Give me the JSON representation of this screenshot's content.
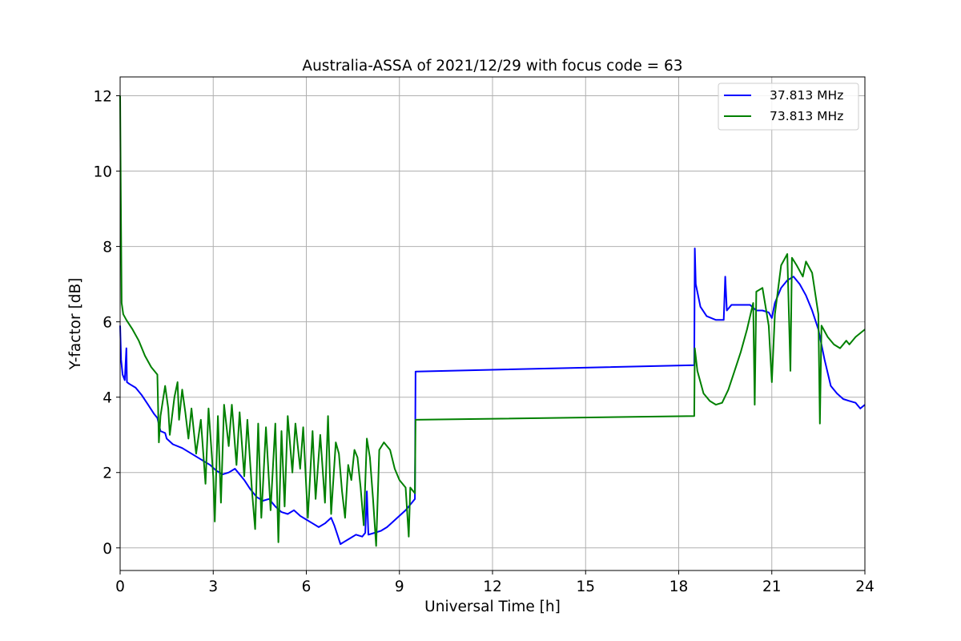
{
  "chart_data": {
    "type": "line",
    "title": "Australia-ASSA of 2021/12/29 with focus code = 63",
    "xlabel": "Universal Time [h]",
    "ylabel": "Y-factor [dB]",
    "xlim": [
      0,
      24
    ],
    "ylim": [
      -0.6,
      12.5
    ],
    "xticks": [
      0,
      3,
      6,
      9,
      12,
      15,
      18,
      21,
      24
    ],
    "yticks": [
      0,
      2,
      4,
      6,
      8,
      10,
      12
    ],
    "grid": true,
    "legend_position": "upper right",
    "series": [
      {
        "name": "37.813 MHz",
        "color": "#0000ff",
        "points": [
          [
            0.0,
            5.9
          ],
          [
            0.03,
            5.0
          ],
          [
            0.08,
            4.6
          ],
          [
            0.15,
            4.45
          ],
          [
            0.2,
            5.3
          ],
          [
            0.22,
            4.4
          ],
          [
            0.3,
            4.35
          ],
          [
            0.5,
            4.25
          ],
          [
            0.7,
            4.05
          ],
          [
            0.9,
            3.8
          ],
          [
            1.1,
            3.55
          ],
          [
            1.2,
            3.45
          ],
          [
            1.3,
            3.1
          ],
          [
            1.45,
            3.05
          ],
          [
            1.5,
            2.9
          ],
          [
            1.7,
            2.75
          ],
          [
            2.0,
            2.65
          ],
          [
            2.3,
            2.5
          ],
          [
            2.6,
            2.35
          ],
          [
            2.9,
            2.2
          ],
          [
            3.1,
            2.05
          ],
          [
            3.3,
            1.95
          ],
          [
            3.5,
            2.0
          ],
          [
            3.7,
            2.1
          ],
          [
            3.8,
            2.0
          ],
          [
            4.0,
            1.8
          ],
          [
            4.2,
            1.55
          ],
          [
            4.4,
            1.35
          ],
          [
            4.6,
            1.25
          ],
          [
            4.8,
            1.3
          ],
          [
            5.0,
            1.1
          ],
          [
            5.2,
            0.95
          ],
          [
            5.4,
            0.9
          ],
          [
            5.6,
            1.0
          ],
          [
            5.8,
            0.85
          ],
          [
            6.0,
            0.75
          ],
          [
            6.2,
            0.65
          ],
          [
            6.4,
            0.55
          ],
          [
            6.6,
            0.65
          ],
          [
            6.8,
            0.8
          ],
          [
            6.9,
            0.6
          ],
          [
            7.0,
            0.35
          ],
          [
            7.1,
            0.1
          ],
          [
            7.2,
            0.15
          ],
          [
            7.4,
            0.25
          ],
          [
            7.6,
            0.35
          ],
          [
            7.8,
            0.3
          ],
          [
            7.9,
            0.4
          ],
          [
            7.95,
            1.5
          ],
          [
            8.0,
            0.35
          ],
          [
            8.2,
            0.4
          ],
          [
            8.4,
            0.45
          ],
          [
            8.6,
            0.55
          ],
          [
            8.8,
            0.7
          ],
          [
            9.0,
            0.85
          ],
          [
            9.2,
            1.0
          ],
          [
            9.4,
            1.2
          ],
          [
            9.5,
            1.3
          ],
          [
            9.52,
            4.68
          ],
          [
            18.5,
            4.85
          ],
          [
            18.52,
            7.95
          ],
          [
            18.55,
            7.0
          ],
          [
            18.7,
            6.4
          ],
          [
            18.9,
            6.15
          ],
          [
            19.2,
            6.05
          ],
          [
            19.45,
            6.05
          ],
          [
            19.5,
            7.2
          ],
          [
            19.55,
            6.3
          ],
          [
            19.7,
            6.45
          ],
          [
            20.0,
            6.45
          ],
          [
            20.3,
            6.45
          ],
          [
            20.5,
            6.3
          ],
          [
            20.7,
            6.3
          ],
          [
            20.9,
            6.25
          ],
          [
            21.0,
            6.1
          ],
          [
            21.1,
            6.5
          ],
          [
            21.3,
            6.9
          ],
          [
            21.5,
            7.1
          ],
          [
            21.7,
            7.2
          ],
          [
            21.9,
            7.0
          ],
          [
            22.1,
            6.7
          ],
          [
            22.3,
            6.3
          ],
          [
            22.5,
            5.8
          ],
          [
            22.7,
            5.0
          ],
          [
            22.9,
            4.3
          ],
          [
            23.1,
            4.1
          ],
          [
            23.3,
            3.95
          ],
          [
            23.5,
            3.9
          ],
          [
            23.7,
            3.85
          ],
          [
            23.85,
            3.7
          ],
          [
            24.0,
            3.8
          ]
        ]
      },
      {
        "name": "73.813 MHz",
        "color": "#008000",
        "points": [
          [
            0.0,
            12.0
          ],
          [
            0.02,
            9.5
          ],
          [
            0.05,
            6.5
          ],
          [
            0.1,
            6.2
          ],
          [
            0.2,
            6.05
          ],
          [
            0.4,
            5.8
          ],
          [
            0.6,
            5.5
          ],
          [
            0.8,
            5.1
          ],
          [
            1.0,
            4.8
          ],
          [
            1.2,
            4.6
          ],
          [
            1.25,
            2.8
          ],
          [
            1.3,
            3.5
          ],
          [
            1.45,
            4.3
          ],
          [
            1.55,
            3.7
          ],
          [
            1.6,
            3.0
          ],
          [
            1.75,
            4.0
          ],
          [
            1.85,
            4.4
          ],
          [
            1.9,
            3.4
          ],
          [
            2.0,
            4.2
          ],
          [
            2.1,
            3.6
          ],
          [
            2.2,
            2.9
          ],
          [
            2.3,
            3.7
          ],
          [
            2.45,
            2.5
          ],
          [
            2.6,
            3.4
          ],
          [
            2.75,
            1.7
          ],
          [
            2.85,
            3.7
          ],
          [
            3.0,
            1.9
          ],
          [
            3.05,
            0.7
          ],
          [
            3.15,
            3.5
          ],
          [
            3.25,
            1.2
          ],
          [
            3.35,
            3.8
          ],
          [
            3.5,
            2.7
          ],
          [
            3.6,
            3.8
          ],
          [
            3.75,
            2.2
          ],
          [
            3.85,
            3.6
          ],
          [
            4.0,
            1.9
          ],
          [
            4.1,
            3.4
          ],
          [
            4.25,
            1.5
          ],
          [
            4.35,
            0.5
          ],
          [
            4.45,
            3.3
          ],
          [
            4.55,
            0.8
          ],
          [
            4.7,
            3.2
          ],
          [
            4.85,
            1.0
          ],
          [
            5.0,
            3.3
          ],
          [
            5.1,
            0.15
          ],
          [
            5.2,
            3.1
          ],
          [
            5.3,
            1.1
          ],
          [
            5.4,
            3.5
          ],
          [
            5.55,
            2.0
          ],
          [
            5.65,
            3.3
          ],
          [
            5.8,
            2.1
          ],
          [
            5.9,
            3.2
          ],
          [
            6.05,
            0.8
          ],
          [
            6.2,
            3.1
          ],
          [
            6.3,
            1.3
          ],
          [
            6.45,
            3.0
          ],
          [
            6.6,
            1.2
          ],
          [
            6.7,
            3.5
          ],
          [
            6.8,
            0.9
          ],
          [
            6.95,
            2.8
          ],
          [
            7.05,
            2.5
          ],
          [
            7.15,
            1.5
          ],
          [
            7.25,
            0.8
          ],
          [
            7.35,
            2.2
          ],
          [
            7.45,
            1.8
          ],
          [
            7.55,
            2.6
          ],
          [
            7.65,
            2.4
          ],
          [
            7.75,
            1.6
          ],
          [
            7.85,
            0.6
          ],
          [
            7.95,
            2.9
          ],
          [
            8.05,
            2.4
          ],
          [
            8.15,
            1.3
          ],
          [
            8.25,
            0.05
          ],
          [
            8.35,
            2.6
          ],
          [
            8.5,
            2.8
          ],
          [
            8.7,
            2.6
          ],
          [
            8.85,
            2.1
          ],
          [
            9.0,
            1.8
          ],
          [
            9.2,
            1.6
          ],
          [
            9.3,
            0.3
          ],
          [
            9.35,
            1.6
          ],
          [
            9.5,
            1.45
          ],
          [
            9.52,
            3.4
          ],
          [
            18.5,
            3.5
          ],
          [
            18.52,
            5.3
          ],
          [
            18.6,
            4.7
          ],
          [
            18.8,
            4.1
          ],
          [
            19.0,
            3.9
          ],
          [
            19.2,
            3.8
          ],
          [
            19.4,
            3.85
          ],
          [
            19.6,
            4.2
          ],
          [
            19.8,
            4.7
          ],
          [
            20.0,
            5.2
          ],
          [
            20.2,
            5.8
          ],
          [
            20.4,
            6.5
          ],
          [
            20.45,
            3.8
          ],
          [
            20.5,
            6.8
          ],
          [
            20.7,
            6.9
          ],
          [
            20.9,
            5.9
          ],
          [
            21.0,
            4.4
          ],
          [
            21.1,
            6.2
          ],
          [
            21.3,
            7.5
          ],
          [
            21.5,
            7.8
          ],
          [
            21.6,
            4.7
          ],
          [
            21.65,
            7.7
          ],
          [
            21.8,
            7.5
          ],
          [
            22.0,
            7.2
          ],
          [
            22.1,
            7.6
          ],
          [
            22.3,
            7.3
          ],
          [
            22.5,
            6.2
          ],
          [
            22.55,
            3.3
          ],
          [
            22.6,
            5.9
          ],
          [
            22.8,
            5.6
          ],
          [
            23.0,
            5.4
          ],
          [
            23.2,
            5.3
          ],
          [
            23.4,
            5.5
          ],
          [
            23.5,
            5.4
          ],
          [
            23.7,
            5.6
          ],
          [
            24.0,
            5.8
          ]
        ]
      }
    ]
  }
}
